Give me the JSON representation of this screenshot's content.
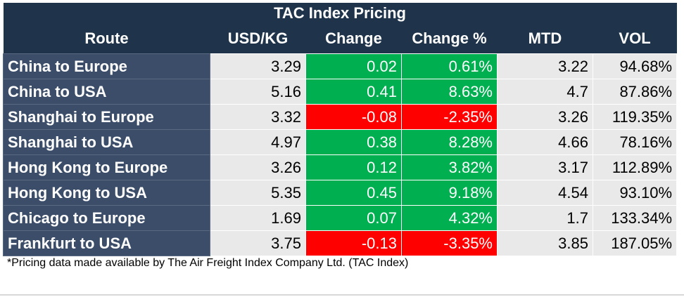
{
  "header": {
    "title": "TAC Index Pricing"
  },
  "table": {
    "columns": [
      "Route",
      "USD/KG",
      "Change",
      "Change %",
      "MTD",
      "VOL"
    ],
    "rows": [
      [
        "China to Europe",
        "3.29",
        "0.02",
        "0.61%",
        "3.22",
        "94.68%"
      ],
      [
        "China to USA",
        "5.16",
        "0.41",
        "8.63%",
        "4.7",
        "87.86%"
      ],
      [
        "Shanghai to Europe",
        "3.32",
        "-0.08",
        "-2.35%",
        "3.26",
        "119.35%"
      ],
      [
        "Shanghai to USA",
        "4.97",
        "0.38",
        "8.28%",
        "4.66",
        "78.16%"
      ],
      [
        "Hong Kong to Europe",
        "3.26",
        "0.12",
        "3.82%",
        "3.17",
        "112.89%"
      ],
      [
        "Hong Kong to USA",
        "5.35",
        "0.45",
        "9.18%",
        "4.54",
        "93.10%"
      ],
      [
        "Chicago to Europe",
        "1.69",
        "0.07",
        "4.32%",
        "1.7",
        "133.34%"
      ],
      [
        "Frankfurt to USA",
        "3.75",
        "-0.13",
        "-3.35%",
        "3.85",
        "187.05%"
      ]
    ],
    "colored_columns": [
      2,
      3
    ],
    "colors": {
      "positive": "#00b050",
      "negative": "#ff0000",
      "route": "#3b4d68",
      "header": "#1f344b",
      "cell": "#e9e9e9"
    }
  },
  "footnote": "*Pricing data made available by The Air Freight Index Company Ltd. (TAC Index)"
}
